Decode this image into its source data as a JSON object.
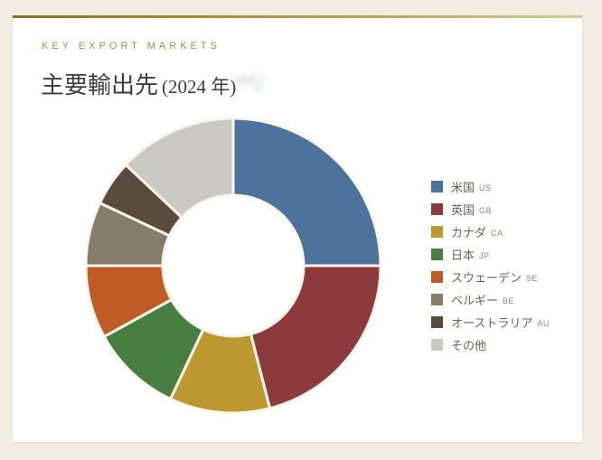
{
  "page": {
    "background_color": "#f2ece2",
    "card_background_color": "#ffffff",
    "accent_gold_dark": "#8b6e2a",
    "accent_gold_light": "#dccb97"
  },
  "header": {
    "eyebrow": "KEY EXPORT MARKETS",
    "eyebrow_color": "#ae8c3f",
    "title": "主要輸出先",
    "title_suffix": "(2024 年)"
  },
  "chart_data": {
    "type": "pie",
    "subtype": "donut",
    "title": "主要輸出先 (2024 年)",
    "start_angle_deg": 0,
    "direction": "clockwise",
    "inner_radius_ratio": 0.48,
    "legend_position": "right",
    "separator_color": "#fbf6ec",
    "unit": "%",
    "segments": [
      {
        "label": "米国",
        "code": "US",
        "value": 25,
        "color": "#4b739c"
      },
      {
        "label": "英国",
        "code": "GB",
        "value": 21,
        "color": "#8c3a3b"
      },
      {
        "label": "カナダ",
        "code": "CA",
        "value": 11,
        "color": "#bd982e"
      },
      {
        "label": "日本",
        "code": "JP",
        "value": 10,
        "color": "#477f42"
      },
      {
        "label": "スウェーデン",
        "code": "SE",
        "value": 8,
        "color": "#c15a25"
      },
      {
        "label": "ベルギー",
        "code": "BE",
        "value": 7,
        "color": "#857c6c"
      },
      {
        "label": "オーストラリア",
        "code": "AU",
        "value": 5,
        "color": "#5a4b3c"
      },
      {
        "label": "その他",
        "code": "",
        "value": 13,
        "color": "#cbc9c4"
      }
    ]
  }
}
